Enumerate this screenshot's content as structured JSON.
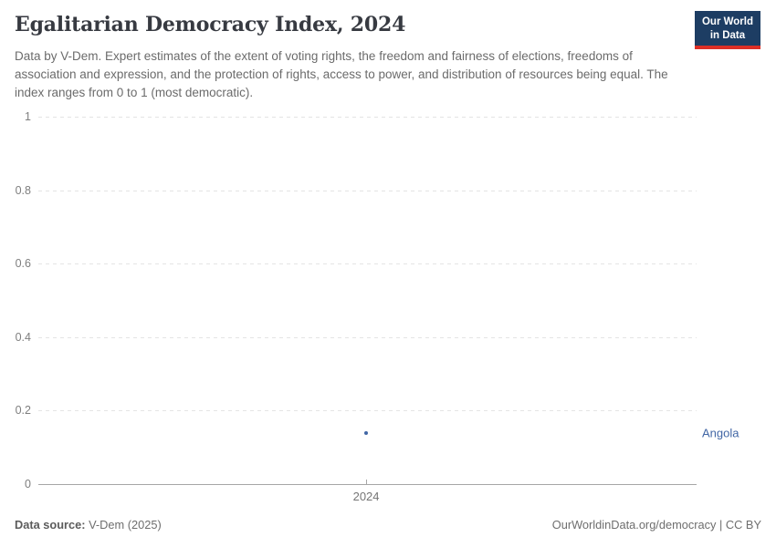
{
  "header": {
    "title": "Egalitarian Democracy Index, 2024",
    "subtitle": "Data by V-Dem. Expert estimates of the extent of voting rights, the freedom and fairness of elections, freedoms of association and expression, and the protection of rights, access to power, and distribution of resources being equal. The index ranges from 0 to 1 (most democratic).",
    "logo": {
      "line1": "Our World",
      "line2": "in Data"
    }
  },
  "chart_data": {
    "type": "scatter",
    "title": "Egalitarian Democracy Index, 2024",
    "x": [
      2024
    ],
    "x_tick_labels": [
      "2024"
    ],
    "series": [
      {
        "name": "Angola",
        "values": [
          0.14
        ],
        "color": "#4166a5"
      }
    ],
    "ylim": [
      0,
      1
    ],
    "yticks": [
      0,
      0.2,
      0.4,
      0.6,
      0.8,
      1
    ],
    "grid": true,
    "legend_position": "right-of-point"
  },
  "colors": {
    "logo_bg": "#1d3d63",
    "logo_stripe": "#dc2f26",
    "accent_blue": "#4166a5"
  },
  "footer": {
    "source_label": "Data source:",
    "source_value": " V-Dem (2025)",
    "right_text": "OurWorldinData.org/democracy | CC BY"
  }
}
